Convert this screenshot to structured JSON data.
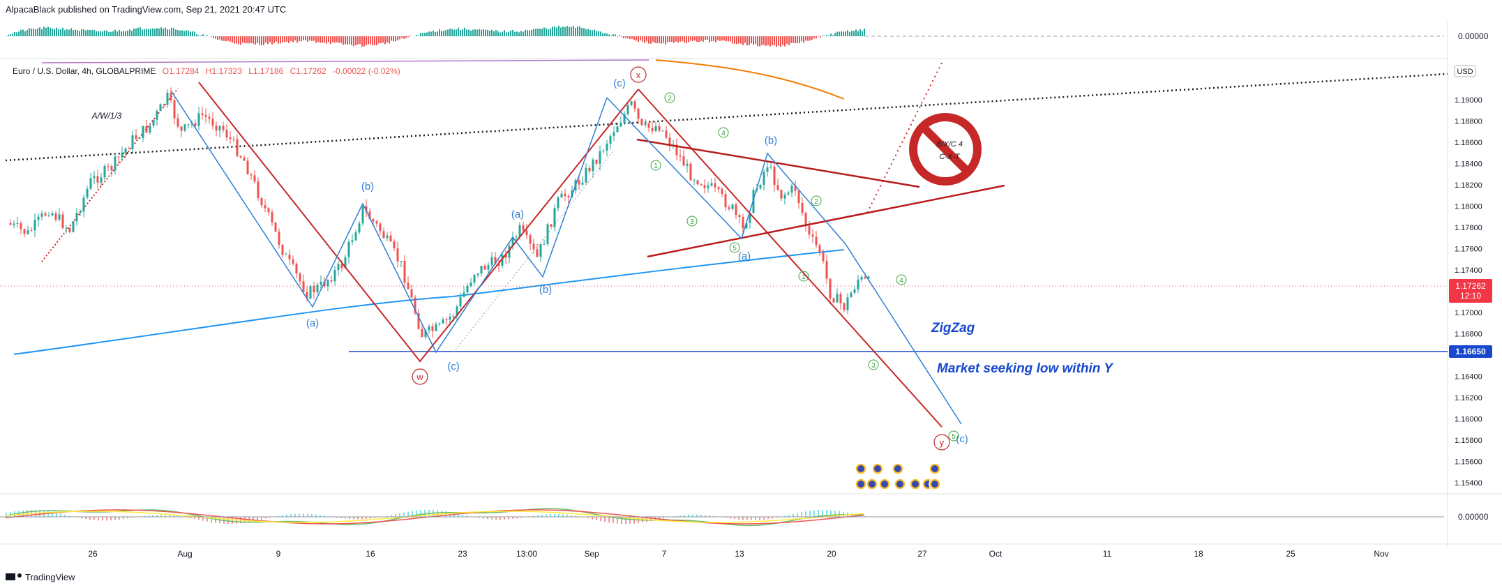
{
  "header": {
    "publish_line": "AlpacaBlack published on TradingView.com, Sep 21, 2021 20:47 UTC",
    "footer_logo": "TradingView"
  },
  "colors": {
    "up": "#26a69a",
    "down": "#ef5350",
    "wave_blue": "#2f7fd3",
    "wave_red": "#c62828",
    "count_green": "#3aa33a",
    "ma_blue": "#2196f3",
    "ma_orange": "#f57c00",
    "price_badge": "#f23645",
    "support_badge": "#1848cc"
  },
  "chart_data": {
    "type": "candlestick",
    "symbol_line": {
      "symbol": "Euro / U.S. Dollar, 4h, GLOBALPRIME",
      "O": "O1.17284",
      "H": "H1.17323",
      "L": "L1.17186",
      "C": "C1.17262",
      "change": "-0.00022 (-0.02%)"
    },
    "currency": "USD",
    "y_ticks": [
      "1.19000",
      "1.18800",
      "1.18600",
      "1.18400",
      "1.18200",
      "1.18000",
      "1.17800",
      "1.17600",
      "1.17400",
      "1.17000",
      "1.16800",
      "1.16400",
      "1.16200",
      "1.16000",
      "1.15800",
      "1.15600",
      "1.15400"
    ],
    "ylim": [
      1.153,
      1.193
    ],
    "x_ticks": [
      "26",
      "Aug",
      "9",
      "16",
      "23",
      "13:00",
      "Sep",
      "7",
      "13",
      "20",
      "27",
      "Oct",
      "11",
      "18",
      "25",
      "Nov"
    ],
    "last_price": "1.17262",
    "countdown": "12:10",
    "support_level": "1.16650",
    "top_osc_label": "0.00000",
    "bottom_osc_label": "0.00000",
    "approx_swing_points": [
      {
        "x": "Jul 29",
        "y": 1.1905
      },
      {
        "x": "Aug 10",
        "y": 1.171
      },
      {
        "x": "Aug 13",
        "y": 1.1805
      },
      {
        "x": "Aug 20",
        "y": 1.1665
      },
      {
        "x": "Aug 25",
        "y": 1.1775
      },
      {
        "x": "Aug 27",
        "y": 1.174
      },
      {
        "x": "Sep 3",
        "y": 1.191
      },
      {
        "x": "Sep 13",
        "y": 1.177
      },
      {
        "x": "Sep 14",
        "y": 1.1845
      },
      {
        "x": "Sep 20",
        "y": 1.17
      },
      {
        "x": "Sep 21",
        "y": 1.1726
      }
    ],
    "annotations": {
      "awl": "A/W/1/3",
      "wave_a": "(a)",
      "wave_b": "(b)",
      "wave_c": "(c)",
      "w": "w",
      "x": "x",
      "y": "y",
      "n1": "1",
      "n2": "2",
      "n3": "3",
      "n4": "4",
      "n5": "5",
      "prohibited_line1": "B/X/C 4",
      "prohibited_line2": "C-X-T",
      "zigzag": "ZigZag",
      "market_note": "Market seeking low within Y"
    }
  }
}
